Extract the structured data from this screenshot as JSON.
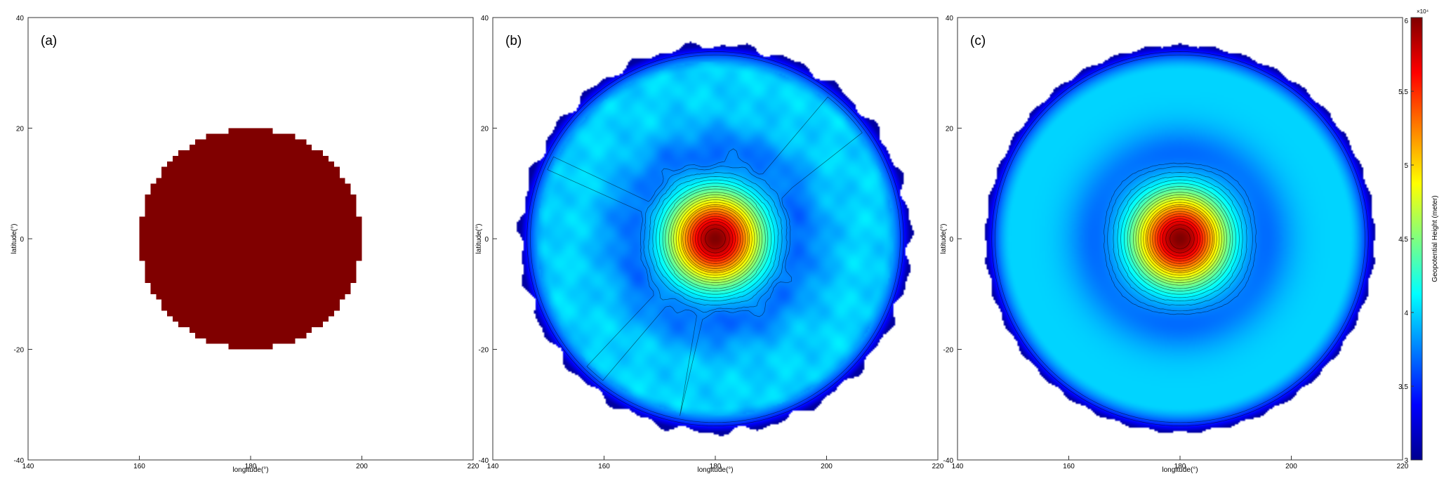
{
  "chart_data": [
    {
      "type": "heatmap",
      "panel_label": "(a)",
      "xlabel": "longitude(°)",
      "ylabel": "latitude(°)",
      "xlim": [
        140,
        220
      ],
      "ylim": [
        -40,
        40
      ],
      "xticks": [
        140,
        160,
        180,
        200,
        220
      ],
      "yticks": [
        -40,
        -20,
        0,
        20,
        40
      ],
      "field": {
        "kind": "disk",
        "center": [
          180,
          0
        ],
        "radius_deg": 20,
        "value": 60000,
        "color": "#800000",
        "outside": "white"
      }
    },
    {
      "type": "heatmap",
      "panel_label": "(b)",
      "xlabel": "longitude(°)",
      "ylabel": "latitude(°)",
      "xlim": [
        140,
        220
      ],
      "ylim": [
        -40,
        40
      ],
      "xticks": [
        140,
        160,
        180,
        200,
        220
      ],
      "yticks": [
        -40,
        -20,
        0,
        20,
        40
      ],
      "field": {
        "kind": "radial",
        "center": [
          180,
          0
        ],
        "domain_radius_deg": 35,
        "peak_value": 60000,
        "background_value": 40000,
        "trough_value": 37000,
        "edge_value": 31000,
        "contours": true,
        "noisy": true
      }
    },
    {
      "type": "heatmap",
      "panel_label": "(c)",
      "xlabel": "longitude(°)",
      "ylabel": "latitude(°)",
      "xlim": [
        140,
        220
      ],
      "ylim": [
        -40,
        40
      ],
      "xticks": [
        140,
        160,
        180,
        200,
        220
      ],
      "yticks": [
        -40,
        -20,
        0,
        20,
        40
      ],
      "field": {
        "kind": "radial",
        "center": [
          180,
          0
        ],
        "domain_radius_deg": 35,
        "peak_value": 60000,
        "background_value": 40000,
        "trough_value": 37000,
        "edge_value": 31000,
        "contours": true,
        "noisy": false
      }
    }
  ],
  "colorbar": {
    "label": "Geopotential Height (meter)",
    "exponent_label": "×10⁴",
    "range": [
      30000,
      60000
    ],
    "ticks": [
      "3",
      "3.5",
      "4",
      "4.5",
      "5",
      "5.5",
      "6"
    ],
    "tick_values": [
      3,
      3.5,
      4,
      4.5,
      5,
      5.5,
      6
    ],
    "colormap": "jet"
  }
}
